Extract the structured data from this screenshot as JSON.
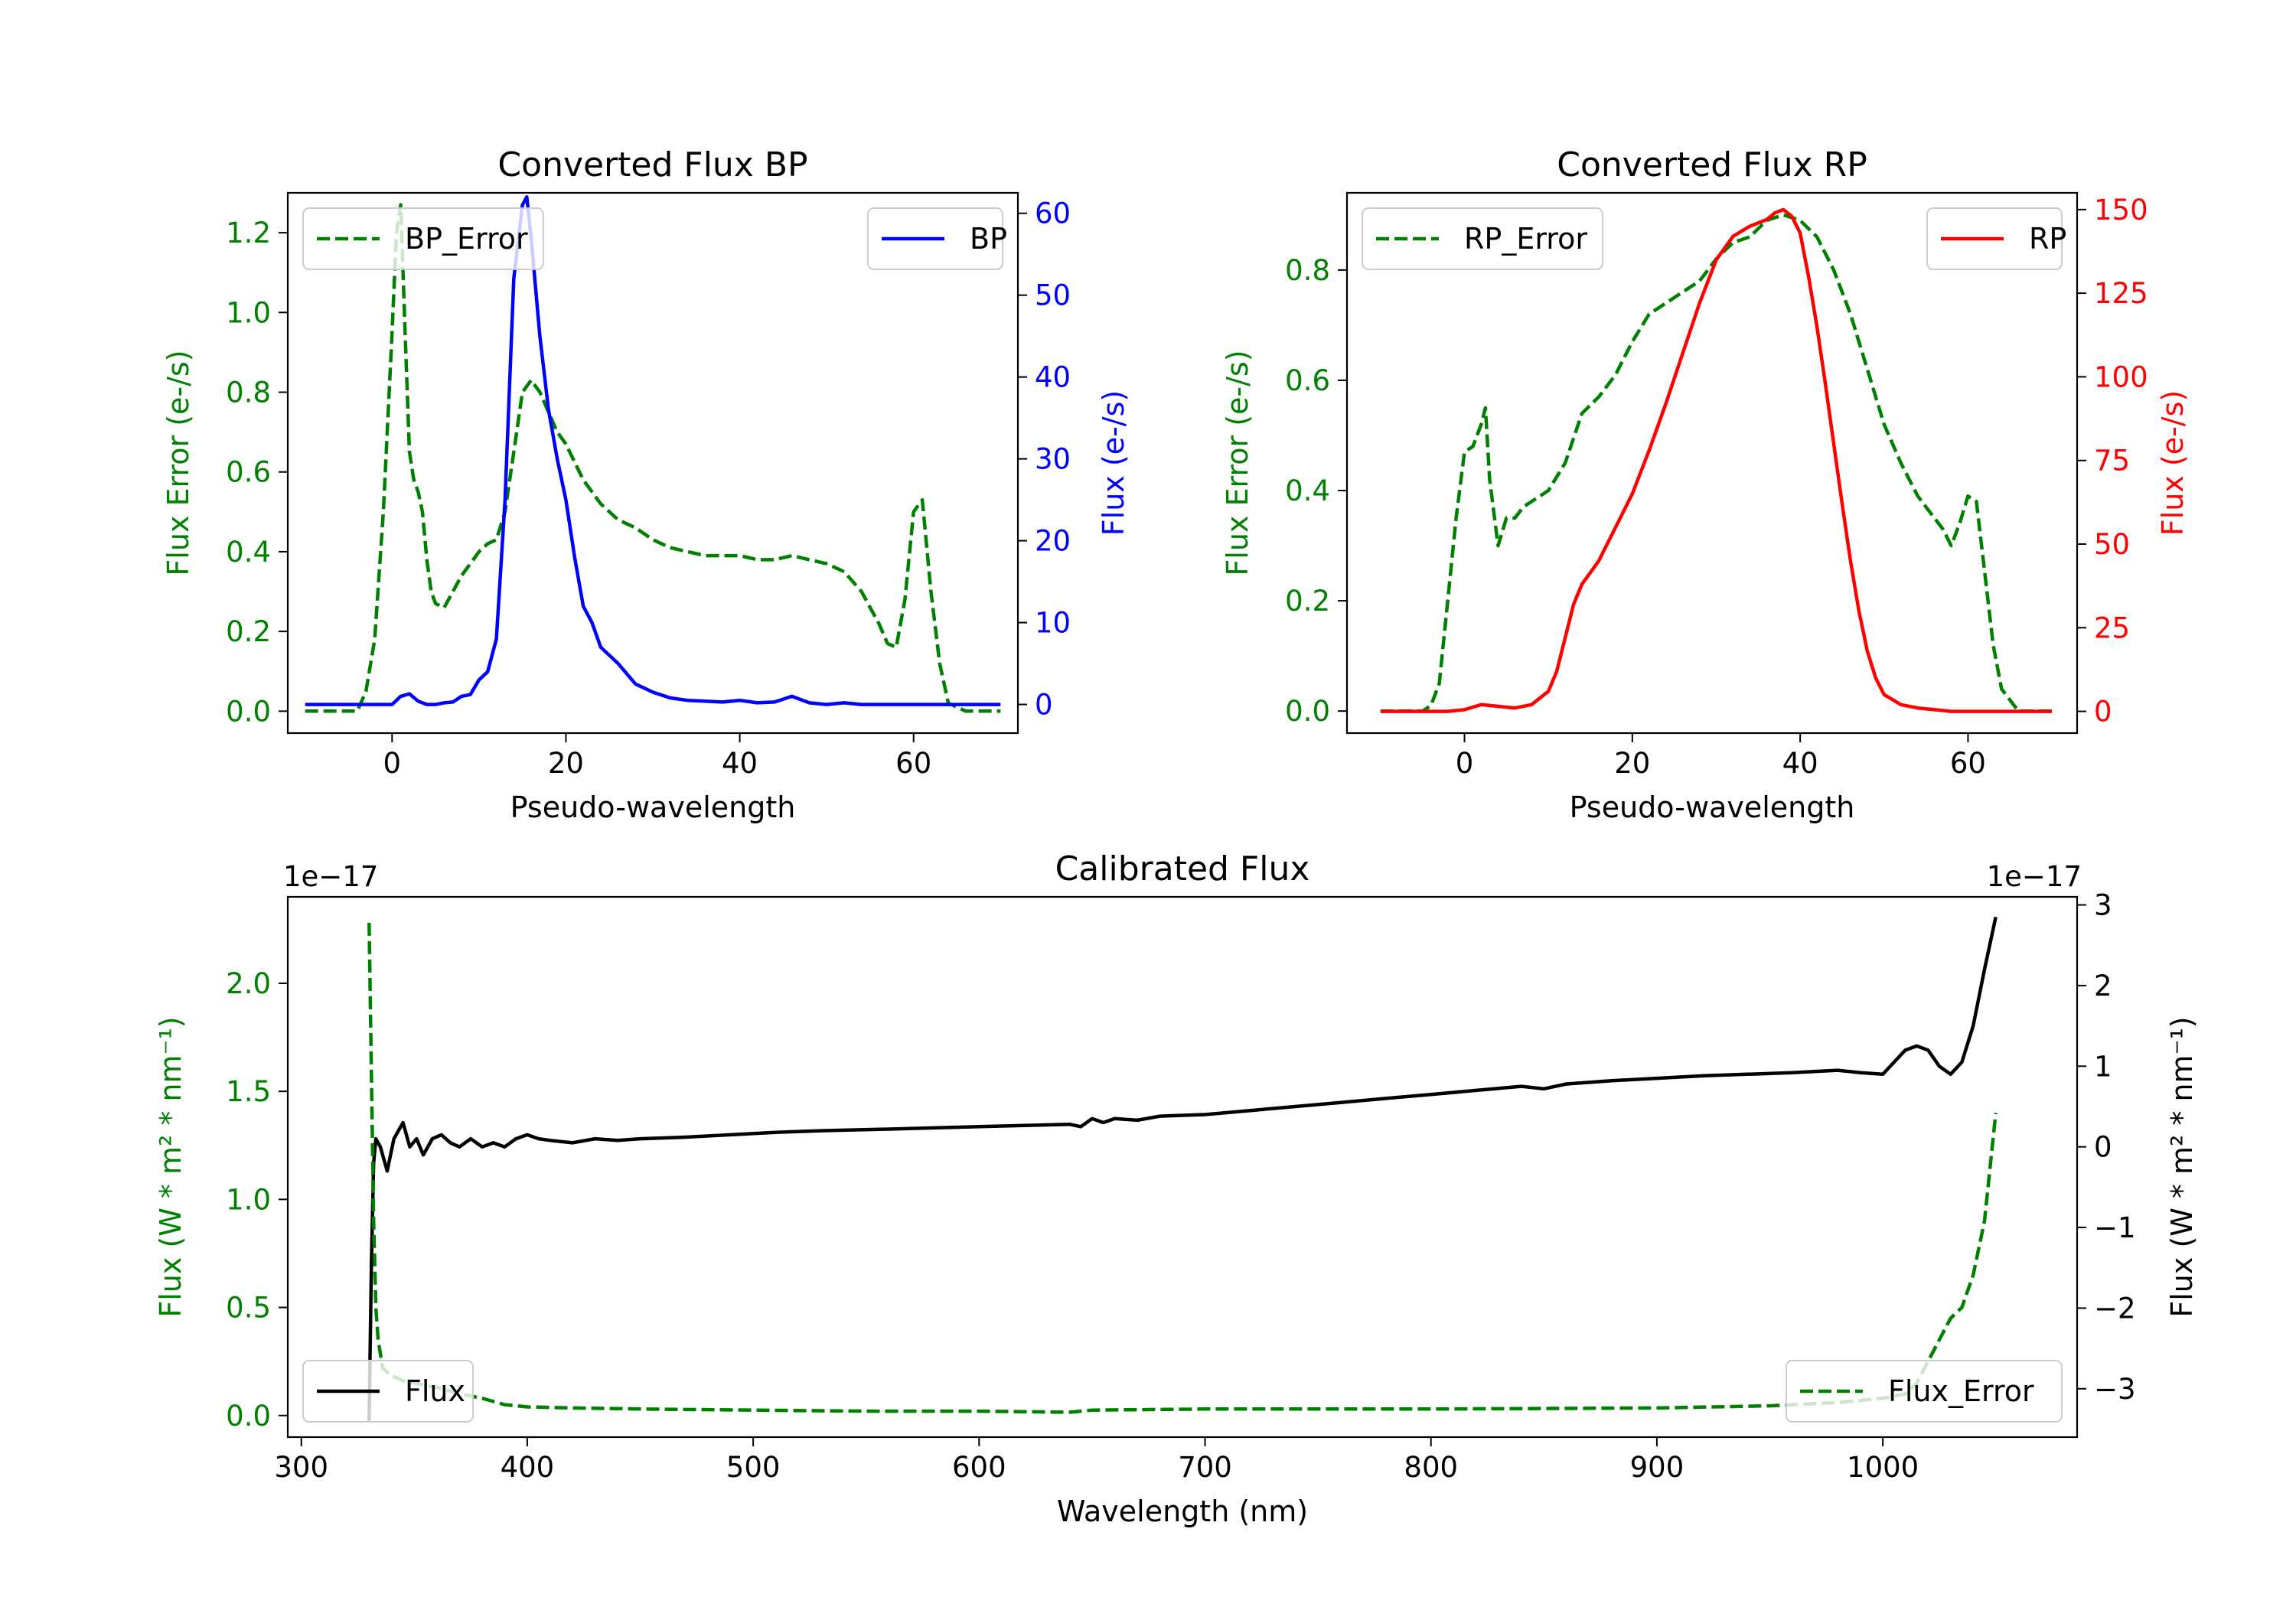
{
  "chart_data": [
    {
      "id": "bp",
      "type": "line",
      "title": "Converted Flux BP",
      "xlabel": "Pseudo-wavelength",
      "xlim": [
        -12,
        72
      ],
      "xticks": [
        0,
        20,
        40,
        60
      ],
      "left_axis": {
        "label": "Flux Error (e-/s)",
        "color": "#008000",
        "ylim": [
          -0.055,
          1.3
        ],
        "ticks": [
          0.0,
          0.2,
          0.4,
          0.6,
          0.8,
          1.0,
          1.2
        ],
        "decimals": 1
      },
      "right_axis": {
        "label": "Flux (e-/s)",
        "color": "#0000ff",
        "ylim": [
          -3.5,
          62.5
        ],
        "ticks": [
          0,
          10,
          20,
          30,
          40,
          50,
          60
        ],
        "decimals": 0
      },
      "series": [
        {
          "name": "BP_Error",
          "axis": "left",
          "color": "#008000",
          "dashed": true,
          "legend": "upper left",
          "x": [
            -10,
            -4,
            -3,
            -2,
            -1,
            0,
            0.5,
            1,
            1.5,
            2,
            2.5,
            3,
            3.5,
            4,
            4.5,
            5,
            6,
            7,
            8,
            9,
            10,
            11,
            12,
            13,
            14,
            15,
            16,
            17,
            18,
            19,
            20,
            22,
            24,
            26,
            28,
            30,
            32,
            34,
            36,
            38,
            40,
            42,
            44,
            46,
            48,
            50,
            52,
            54,
            55,
            56,
            57,
            58,
            59,
            60,
            61,
            62,
            63,
            64,
            66,
            68,
            70
          ],
          "y": [
            0.0,
            0.0,
            0.05,
            0.18,
            0.5,
            0.95,
            1.2,
            1.27,
            0.95,
            0.65,
            0.58,
            0.55,
            0.5,
            0.38,
            0.3,
            0.27,
            0.26,
            0.3,
            0.34,
            0.37,
            0.4,
            0.42,
            0.43,
            0.5,
            0.65,
            0.8,
            0.83,
            0.8,
            0.75,
            0.7,
            0.67,
            0.58,
            0.52,
            0.48,
            0.46,
            0.43,
            0.41,
            0.4,
            0.39,
            0.39,
            0.39,
            0.38,
            0.38,
            0.39,
            0.38,
            0.37,
            0.35,
            0.3,
            0.26,
            0.22,
            0.17,
            0.16,
            0.28,
            0.5,
            0.53,
            0.3,
            0.12,
            0.02,
            0.0,
            0.0,
            0.0
          ]
        },
        {
          "name": "BP",
          "axis": "right",
          "color": "#0000ff",
          "dashed": false,
          "legend": "upper right",
          "x": [
            -10,
            -5,
            0,
            1,
            2,
            3,
            4,
            5,
            6,
            7,
            8,
            9,
            10,
            11,
            12,
            13,
            14,
            15,
            15.5,
            16,
            17,
            18,
            19,
            20,
            21,
            22,
            23,
            24,
            25,
            26,
            28,
            30,
            32,
            34,
            36,
            38,
            40,
            42,
            44,
            46,
            48,
            50,
            52,
            54,
            56,
            60,
            65,
            70
          ],
          "y": [
            0,
            0,
            0,
            1,
            1.3,
            0.4,
            0,
            0,
            0.2,
            0.3,
            1,
            1.2,
            3,
            4,
            8,
            25,
            52,
            61,
            62,
            57,
            45,
            36,
            30,
            25,
            18,
            12,
            10,
            7,
            6,
            5,
            2.5,
            1.5,
            0.8,
            0.5,
            0.4,
            0.3,
            0.5,
            0.2,
            0.3,
            1,
            0.2,
            0,
            0.2,
            0,
            0,
            0,
            0,
            0
          ]
        }
      ]
    },
    {
      "id": "rp",
      "type": "line",
      "title": "Converted Flux RP",
      "xlabel": "Pseudo-wavelength",
      "xlim": [
        -14,
        73
      ],
      "xticks": [
        0,
        20,
        40,
        60
      ],
      "left_axis": {
        "label": "Flux Error (e-/s)",
        "color": "#008000",
        "ylim": [
          -0.04,
          0.94
        ],
        "ticks": [
          0.0,
          0.2,
          0.4,
          0.6,
          0.8
        ],
        "decimals": 1
      },
      "right_axis": {
        "label": "Flux (e-/s)",
        "color": "#ff0000",
        "ylim": [
          -6.5,
          155
        ],
        "ticks": [
          0,
          25,
          50,
          75,
          100,
          125,
          150
        ],
        "decimals": 0
      },
      "series": [
        {
          "name": "RP_Error",
          "axis": "left",
          "color": "#008000",
          "dashed": true,
          "legend": "upper left",
          "x": [
            -10,
            -5,
            -4,
            -3,
            -2,
            -1,
            0,
            1,
            2,
            2.5,
            3,
            4,
            5,
            6,
            7,
            8,
            10,
            12,
            14,
            16,
            18,
            20,
            22,
            24,
            26,
            28,
            30,
            32,
            34,
            36,
            38,
            40,
            42,
            44,
            46,
            48,
            50,
            52,
            54,
            56,
            57,
            58,
            59,
            60,
            61,
            62,
            63,
            64,
            66,
            70
          ],
          "y": [
            0,
            0,
            0.01,
            0.05,
            0.2,
            0.35,
            0.47,
            0.48,
            0.52,
            0.55,
            0.42,
            0.3,
            0.35,
            0.35,
            0.37,
            0.38,
            0.4,
            0.45,
            0.54,
            0.57,
            0.61,
            0.67,
            0.72,
            0.74,
            0.76,
            0.78,
            0.82,
            0.85,
            0.86,
            0.89,
            0.9,
            0.89,
            0.86,
            0.8,
            0.72,
            0.62,
            0.52,
            0.45,
            0.39,
            0.35,
            0.33,
            0.3,
            0.34,
            0.39,
            0.38,
            0.25,
            0.12,
            0.04,
            0.0,
            0.0
          ]
        },
        {
          "name": "RP",
          "axis": "right",
          "color": "#ff0000",
          "dashed": false,
          "legend": "upper right",
          "x": [
            -10,
            -5,
            -2,
            0,
            2,
            4,
            6,
            8,
            10,
            11,
            12,
            13,
            14,
            16,
            18,
            20,
            22,
            24,
            26,
            28,
            30,
            32,
            34,
            36,
            37,
            38,
            39,
            40,
            41,
            42,
            43,
            44,
            45,
            46,
            47,
            48,
            49,
            50,
            52,
            54,
            56,
            58,
            60,
            62,
            65,
            70
          ],
          "y": [
            0,
            0,
            0,
            0.5,
            2,
            1.5,
            1,
            2,
            6,
            12,
            22,
            32,
            38,
            45,
            55,
            65,
            78,
            92,
            107,
            122,
            135,
            142,
            145,
            147,
            149,
            150,
            148,
            143,
            130,
            115,
            98,
            80,
            62,
            45,
            30,
            18,
            10,
            5,
            2,
            1,
            0.5,
            0,
            0,
            0,
            0,
            0
          ]
        }
      ]
    },
    {
      "id": "cal",
      "type": "line",
      "title": "Calibrated Flux",
      "xlabel": "Wavelength (nm)",
      "xlim": [
        294,
        1086
      ],
      "xticks": [
        300,
        400,
        500,
        600,
        700,
        800,
        900,
        1000
      ],
      "left_axis": {
        "label": "Flux (W * m² * nm⁻¹)",
        "color": "#008000",
        "offset_text": "1e−17",
        "ylim": [
          -0.1,
          2.4
        ],
        "ticks": [
          0.0,
          0.5,
          1.0,
          1.5,
          2.0
        ],
        "decimals": 1
      },
      "right_axis": {
        "label": "Flux (W * m² * nm⁻¹)",
        "color": "#000000",
        "offset_text": "1e−17",
        "ylim": [
          -3.6,
          3.1
        ],
        "ticks": [
          -3,
          -2,
          -1,
          0,
          1,
          2,
          3
        ],
        "decimals": 0
      },
      "series": [
        {
          "name": "Flux",
          "axis": "right",
          "color": "#000000",
          "dashed": false,
          "legend": "lower left",
          "x": [
            330,
            331,
            332,
            333,
            335,
            338,
            341,
            345,
            348,
            351,
            354,
            358,
            362,
            366,
            370,
            375,
            380,
            385,
            390,
            395,
            400,
            405,
            410,
            420,
            430,
            440,
            450,
            470,
            490,
            510,
            530,
            560,
            600,
            640,
            645,
            650,
            655,
            660,
            670,
            680,
            700,
            720,
            740,
            760,
            780,
            800,
            820,
            840,
            850,
            860,
            880,
            900,
            920,
            940,
            960,
            980,
            990,
            1000,
            1010,
            1015,
            1020,
            1025,
            1030,
            1035,
            1040,
            1045,
            1050
          ],
          "y": [
            -3.4,
            -1.5,
            -0.2,
            0.1,
            0.0,
            -0.3,
            0.1,
            0.3,
            0.0,
            0.1,
            -0.1,
            0.1,
            0.15,
            0.05,
            0.0,
            0.1,
            0.0,
            0.05,
            0.0,
            0.1,
            0.15,
            0.1,
            0.08,
            0.05,
            0.1,
            0.08,
            0.1,
            0.12,
            0.15,
            0.18,
            0.2,
            0.22,
            0.25,
            0.28,
            0.25,
            0.35,
            0.3,
            0.35,
            0.33,
            0.38,
            0.4,
            0.45,
            0.5,
            0.55,
            0.6,
            0.65,
            0.7,
            0.75,
            0.72,
            0.78,
            0.82,
            0.85,
            0.88,
            0.9,
            0.92,
            0.95,
            0.92,
            0.9,
            1.2,
            1.25,
            1.2,
            1.0,
            0.9,
            1.05,
            1.5,
            2.2,
            2.85
          ]
        },
        {
          "name": "Flux_Error",
          "axis": "left",
          "color": "#008000",
          "dashed": true,
          "legend": "lower right",
          "x": [
            330,
            331,
            332,
            333,
            334,
            336,
            338,
            341,
            345,
            350,
            360,
            370,
            380,
            390,
            400,
            420,
            450,
            500,
            550,
            600,
            640,
            650,
            700,
            800,
            900,
            950,
            980,
            1000,
            1010,
            1015,
            1020,
            1025,
            1030,
            1035,
            1040,
            1045,
            1050
          ],
          "y": [
            2.28,
            1.6,
            0.9,
            0.5,
            0.35,
            0.22,
            0.2,
            0.18,
            0.16,
            0.15,
            0.13,
            0.1,
            0.08,
            0.05,
            0.04,
            0.035,
            0.03,
            0.025,
            0.02,
            0.02,
            0.015,
            0.025,
            0.03,
            0.03,
            0.035,
            0.045,
            0.06,
            0.08,
            0.1,
            0.15,
            0.25,
            0.35,
            0.45,
            0.5,
            0.65,
            0.9,
            1.4
          ]
        }
      ]
    }
  ]
}
